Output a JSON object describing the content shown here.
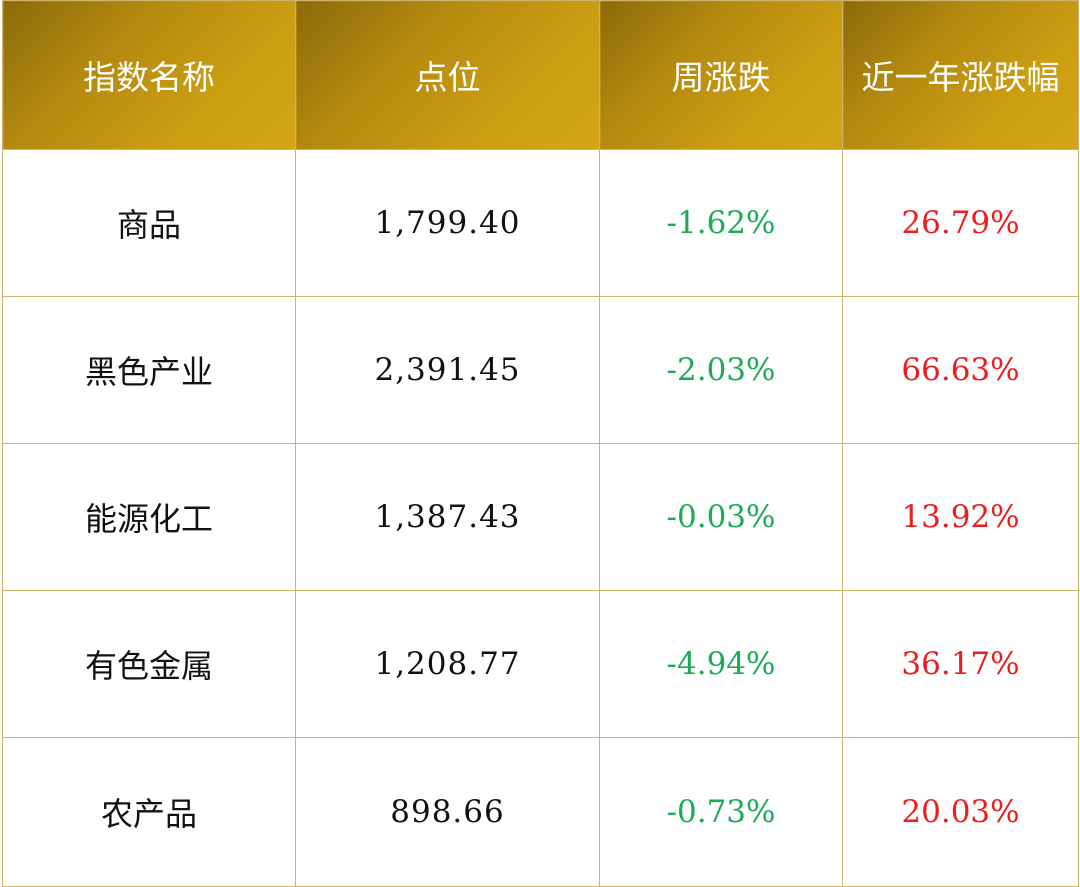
{
  "headers": {
    "name": "指数名称",
    "points": "点位",
    "weekly_change": "周涨跌",
    "yearly_change": "近一年涨跌幅"
  },
  "rows": [
    {
      "name": "商品",
      "points": "1,799.40",
      "weekly_change": "-1.62%",
      "yearly_change": "26.79%"
    },
    {
      "name": "黑色产业",
      "points": "2,391.45",
      "weekly_change": "-2.03%",
      "yearly_change": "66.63%"
    },
    {
      "name": "能源化工",
      "points": "1,387.43",
      "weekly_change": "-0.03%",
      "yearly_change": "13.92%"
    },
    {
      "name": "有色金属",
      "points": "1,208.77",
      "weekly_change": "-4.94%",
      "yearly_change": "36.17%"
    },
    {
      "name": "农产品",
      "points": "898.66",
      "weekly_change": "-0.73%",
      "yearly_change": "20.03%"
    }
  ],
  "colors": {
    "header_gradient_dark": "#8b6a0a",
    "header_gradient_light": "#d4a417",
    "header_text": "#ffffff",
    "negative": "#1bab55",
    "positive": "#ee1c1c",
    "border": "#cdb46a"
  }
}
